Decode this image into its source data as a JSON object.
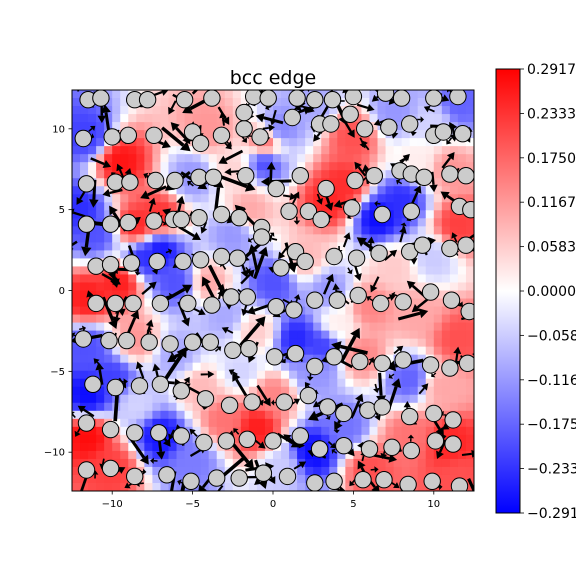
{
  "chart_data": {
    "type": "heatmap",
    "title": "bcc edge",
    "xlabel": "",
    "ylabel": "",
    "xlim": [
      -12.5,
      12.5
    ],
    "ylim": [
      -12.4,
      12.4
    ],
    "x_ticks": [
      {
        "value": -10,
        "label": "−10"
      },
      {
        "value": -5,
        "label": "−5"
      },
      {
        "value": 0,
        "label": "0"
      },
      {
        "value": 5,
        "label": "5"
      },
      {
        "value": 10,
        "label": "10"
      }
    ],
    "y_ticks": [
      {
        "value": 10,
        "label": "10"
      },
      {
        "value": 5,
        "label": "5"
      },
      {
        "value": 0,
        "label": "0"
      },
      {
        "value": -5,
        "label": "−5"
      },
      {
        "value": -10,
        "label": "−10"
      }
    ],
    "colormap": "bwr",
    "colors": {
      "low": "#0000ff",
      "mid": "#ffffff",
      "high": "#ff0000",
      "atom_fill": "#cccccc",
      "atom_edge": "#000000",
      "arrow": "#000000"
    },
    "colorbar": {
      "vmin": -0.2917,
      "vmax": 0.2917,
      "ticks": [
        {
          "value": 0.2917,
          "label": "0.2917"
        },
        {
          "value": 0.2333,
          "label": "0.2333"
        },
        {
          "value": 0.175,
          "label": "0.1750"
        },
        {
          "value": 0.1167,
          "label": "0.1167"
        },
        {
          "value": 0.0583,
          "label": "0.0583"
        },
        {
          "value": 0.0,
          "label": "0.0000"
        },
        {
          "value": -0.0583,
          "label": "−0.0583"
        },
        {
          "value": -0.1167,
          "label": "−0.1167"
        },
        {
          "value": -0.175,
          "label": "−0.1750"
        },
        {
          "value": -0.2333,
          "label": "−0.2333"
        },
        {
          "value": -0.2917,
          "label": "−0.2917"
        }
      ]
    },
    "field_samples": [
      {
        "x": -11.5,
        "y": 9.5,
        "v": -0.22
      },
      {
        "x": -11.0,
        "y": 3.5,
        "v": -0.2
      },
      {
        "x": -12.0,
        "y": 5.0,
        "v": -0.24
      },
      {
        "x": -11.5,
        "y": -0.5,
        "v": 0.26
      },
      {
        "x": -9.5,
        "y": 8.0,
        "v": 0.27
      },
      {
        "x": -8.5,
        "y": 4.0,
        "v": 0.25
      },
      {
        "x": -9.5,
        "y": 0.5,
        "v": 0.26
      },
      {
        "x": -7.0,
        "y": 4.5,
        "v": 0.24
      },
      {
        "x": -7.0,
        "y": 2.5,
        "v": -0.27
      },
      {
        "x": -6.0,
        "y": 0.5,
        "v": -0.2
      },
      {
        "x": -8.0,
        "y": 2.0,
        "v": -0.24
      },
      {
        "x": -5.0,
        "y": 7.0,
        "v": -0.12
      },
      {
        "x": -4.0,
        "y": 10.0,
        "v": 0.12
      },
      {
        "x": -2.5,
        "y": 7.5,
        "v": 0.05
      },
      {
        "x": -0.5,
        "y": 9.0,
        "v": 0.18
      },
      {
        "x": 0.5,
        "y": 10.0,
        "v": -0.14
      },
      {
        "x": -0.5,
        "y": 8.0,
        "v": -0.22
      },
      {
        "x": 2.5,
        "y": 11.5,
        "v": -0.1
      },
      {
        "x": 5.0,
        "y": 9.5,
        "v": 0.2
      },
      {
        "x": 7.5,
        "y": 11.0,
        "v": -0.12
      },
      {
        "x": 10.0,
        "y": 10.5,
        "v": -0.05
      },
      {
        "x": 11.5,
        "y": 11.5,
        "v": -0.18
      },
      {
        "x": 3.5,
        "y": 5.5,
        "v": 0.25
      },
      {
        "x": 4.5,
        "y": 6.5,
        "v": 0.24
      },
      {
        "x": 6.5,
        "y": 4.5,
        "v": -0.28
      },
      {
        "x": 8.0,
        "y": 5.5,
        "v": -0.24
      },
      {
        "x": 11.0,
        "y": 7.5,
        "v": 0.12
      },
      {
        "x": 11.5,
        "y": 4.0,
        "v": 0.22
      },
      {
        "x": 10.0,
        "y": 2.0,
        "v": -0.06
      },
      {
        "x": 2.0,
        "y": 2.0,
        "v": 0.08
      },
      {
        "x": -2.5,
        "y": 3.5,
        "v": -0.12
      },
      {
        "x": 0.0,
        "y": 0.5,
        "v": -0.2
      },
      {
        "x": 3.5,
        "y": 0.0,
        "v": -0.12
      },
      {
        "x": 6.0,
        "y": -1.0,
        "v": 0.14
      },
      {
        "x": 9.0,
        "y": -1.5,
        "v": 0.1
      },
      {
        "x": 11.5,
        "y": -3.0,
        "v": 0.2
      },
      {
        "x": -4.0,
        "y": 0.5,
        "v": 0.1
      },
      {
        "x": -3.0,
        "y": -1.5,
        "v": -0.1
      },
      {
        "x": -1.0,
        "y": -2.5,
        "v": 0.06
      },
      {
        "x": 1.5,
        "y": -3.0,
        "v": -0.25
      },
      {
        "x": 3.0,
        "y": -3.5,
        "v": -0.22
      },
      {
        "x": -11.5,
        "y": -3.5,
        "v": -0.2
      },
      {
        "x": -10.0,
        "y": -5.5,
        "v": -0.22
      },
      {
        "x": -11.5,
        "y": -6.5,
        "v": -0.28
      },
      {
        "x": -8.5,
        "y": -3.0,
        "v": 0.12
      },
      {
        "x": -6.0,
        "y": -4.0,
        "v": -0.1
      },
      {
        "x": -4.5,
        "y": -6.0,
        "v": 0.08
      },
      {
        "x": -2.0,
        "y": -5.0,
        "v": -0.05
      },
      {
        "x": 0.0,
        "y": -6.5,
        "v": 0.14
      },
      {
        "x": 2.5,
        "y": -5.0,
        "v": -0.12
      },
      {
        "x": 5.5,
        "y": -4.0,
        "v": 0.14
      },
      {
        "x": 8.5,
        "y": -5.5,
        "v": -0.18
      },
      {
        "x": 10.5,
        "y": -6.0,
        "v": 0.1
      },
      {
        "x": -11.5,
        "y": -9.0,
        "v": 0.28
      },
      {
        "x": -10.0,
        "y": -11.0,
        "v": 0.22
      },
      {
        "x": -7.0,
        "y": -9.0,
        "v": -0.27
      },
      {
        "x": -5.0,
        "y": -10.5,
        "v": -0.15
      },
      {
        "x": -3.0,
        "y": -8.0,
        "v": 0.16
      },
      {
        "x": -1.0,
        "y": -8.5,
        "v": 0.26
      },
      {
        "x": 0.5,
        "y": -11.0,
        "v": -0.06
      },
      {
        "x": 2.5,
        "y": -10.0,
        "v": -0.28
      },
      {
        "x": 4.5,
        "y": -8.5,
        "v": -0.16
      },
      {
        "x": 6.0,
        "y": -11.0,
        "v": 0.2
      },
      {
        "x": 8.5,
        "y": -9.0,
        "v": 0.16
      },
      {
        "x": 11.0,
        "y": -9.5,
        "v": 0.25
      },
      {
        "x": 11.5,
        "y": -11.5,
        "v": 0.2
      },
      {
        "x": -8.5,
        "y": -7.0,
        "v": -0.05
      },
      {
        "x": 4.0,
        "y": -2.0,
        "v": 0.02
      },
      {
        "x": 7.5,
        "y": 1.5,
        "v": 0.06
      },
      {
        "x": -1.5,
        "y": 5.0,
        "v": 0.1
      },
      {
        "x": 9.0,
        "y": 8.0,
        "v": 0.02
      }
    ],
    "atoms": [
      [
        -11.5,
        11.8
      ],
      [
        -10.7,
        11.9
      ],
      [
        -8.6,
        11.8
      ],
      [
        -7.8,
        11.8
      ],
      [
        -5.5,
        11.8
      ],
      [
        -3.8,
        11.9
      ],
      [
        -1.2,
        12.0
      ],
      [
        -0.3,
        11.9
      ],
      [
        1.5,
        11.9
      ],
      [
        2.6,
        11.8
      ],
      [
        3.7,
        11.8
      ],
      [
        5.0,
        12.0
      ],
      [
        7.0,
        12.2
      ],
      [
        8.0,
        11.9
      ],
      [
        10.0,
        11.9
      ],
      [
        11.5,
        12.0
      ],
      [
        -11.8,
        9.4
      ],
      [
        -10.0,
        9.5
      ],
      [
        -9.0,
        9.6
      ],
      [
        -7.4,
        9.6
      ],
      [
        -5.0,
        9.8
      ],
      [
        -4.5,
        9.1
      ],
      [
        -3.2,
        9.6
      ],
      [
        -1.8,
        10.0
      ],
      [
        -0.8,
        9.5
      ],
      [
        -1.8,
        11.0
      ],
      [
        1.2,
        10.7
      ],
      [
        2.9,
        10.3
      ],
      [
        3.6,
        10.3
      ],
      [
        4.8,
        10.9
      ],
      [
        5.7,
        10.0
      ],
      [
        7.2,
        10.1
      ],
      [
        8.5,
        10.3
      ],
      [
        10.0,
        9.6
      ],
      [
        10.6,
        9.8
      ],
      [
        11.8,
        9.7
      ],
      [
        -11.6,
        6.6
      ],
      [
        -9.8,
        6.7
      ],
      [
        -8.9,
        6.7
      ],
      [
        -7.3,
        6.8
      ],
      [
        -6.1,
        6.8
      ],
      [
        -4.6,
        7.0
      ],
      [
        -3.7,
        7.0
      ],
      [
        -1.7,
        7.1
      ],
      [
        0.2,
        6.3
      ],
      [
        1.7,
        7.1
      ],
      [
        3.3,
        6.3
      ],
      [
        5.1,
        6.8
      ],
      [
        6.3,
        7.1
      ],
      [
        7.9,
        7.4
      ],
      [
        8.6,
        7.2
      ],
      [
        9.4,
        7.0
      ],
      [
        11.0,
        7.2
      ],
      [
        12.0,
        7.1
      ],
      [
        -11.6,
        4.1
      ],
      [
        -10.1,
        4.1
      ],
      [
        -9.0,
        4.2
      ],
      [
        -7.4,
        4.3
      ],
      [
        -6.2,
        4.4
      ],
      [
        -5.7,
        4.4
      ],
      [
        -4.6,
        4.5
      ],
      [
        -3.2,
        4.7
      ],
      [
        -2.1,
        4.5
      ],
      [
        -0.7,
        3.9
      ],
      [
        1.0,
        4.9
      ],
      [
        2.2,
        4.9
      ],
      [
        3.0,
        4.4
      ],
      [
        4.9,
        5.1
      ],
      [
        6.8,
        4.7
      ],
      [
        8.6,
        4.9
      ],
      [
        11.6,
        5.2
      ],
      [
        12.3,
        5.0
      ],
      [
        -11.0,
        1.5
      ],
      [
        -10.1,
        1.6
      ],
      [
        -8.8,
        1.7
      ],
      [
        -7.2,
        1.8
      ],
      [
        -5.6,
        1.8
      ],
      [
        -4.5,
        1.9
      ],
      [
        -3.2,
        2.1
      ],
      [
        -2.2,
        2.0
      ],
      [
        -0.7,
        3.3
      ],
      [
        0.5,
        1.4
      ],
      [
        1.4,
        2.4
      ],
      [
        2.0,
        1.8
      ],
      [
        3.8,
        2.1
      ],
      [
        5.2,
        2.0
      ],
      [
        6.6,
        2.3
      ],
      [
        8.5,
        2.4
      ],
      [
        9.3,
        2.8
      ],
      [
        11.0,
        2.6
      ],
      [
        12.0,
        2.8
      ],
      [
        -11.0,
        -0.8
      ],
      [
        -9.8,
        -0.8
      ],
      [
        -8.7,
        -0.8
      ],
      [
        -7.0,
        -0.8
      ],
      [
        -5.3,
        -0.8
      ],
      [
        -3.8,
        -0.9
      ],
      [
        -2.6,
        -0.4
      ],
      [
        -1.6,
        -0.4
      ],
      [
        0.2,
        -1.0
      ],
      [
        1.3,
        -1.2
      ],
      [
        2.6,
        -0.6
      ],
      [
        4.0,
        -0.6
      ],
      [
        5.3,
        -0.3
      ],
      [
        6.7,
        -0.8
      ],
      [
        8.1,
        -0.7
      ],
      [
        9.8,
        -0.1
      ],
      [
        11.1,
        -0.6
      ],
      [
        12.2,
        -1.3
      ],
      [
        -11.8,
        -3.0
      ],
      [
        -10.2,
        -3.1
      ],
      [
        -9.1,
        -3.1
      ],
      [
        -7.7,
        -3.2
      ],
      [
        -6.4,
        -3.3
      ],
      [
        -5.0,
        -3.2
      ],
      [
        -3.9,
        -3.2
      ],
      [
        -2.5,
        -3.7
      ],
      [
        -1.5,
        -3.6
      ],
      [
        0.1,
        -4.1
      ],
      [
        1.4,
        -3.9
      ],
      [
        2.6,
        -4.7
      ],
      [
        3.8,
        -4.1
      ],
      [
        5.4,
        -4.4
      ],
      [
        6.8,
        -4.5
      ],
      [
        8.1,
        -4.3
      ],
      [
        9.8,
        -4.6
      ],
      [
        11.0,
        -4.8
      ],
      [
        12.1,
        -4.5
      ],
      [
        -11.2,
        -5.8
      ],
      [
        -9.8,
        -6.0
      ],
      [
        -8.3,
        -5.9
      ],
      [
        -7.0,
        -5.8
      ],
      [
        -5.7,
        -6.2
      ],
      [
        -4.2,
        -6.7
      ],
      [
        -2.7,
        -7.1
      ],
      [
        -1.3,
        -6.9
      ],
      [
        0.7,
        -6.9
      ],
      [
        2.2,
        -6.5
      ],
      [
        3.4,
        -7.2
      ],
      [
        4.4,
        -7.6
      ],
      [
        5.9,
        -7.4
      ],
      [
        6.8,
        -7.2
      ],
      [
        8.5,
        -7.8
      ],
      [
        10.0,
        -7.6
      ],
      [
        11.2,
        -8.0
      ],
      [
        -11.6,
        -8.2
      ],
      [
        -10.1,
        -8.6
      ],
      [
        -8.6,
        -8.8
      ],
      [
        -7.1,
        -8.8
      ],
      [
        -5.7,
        -9.0
      ],
      [
        -4.3,
        -9.4
      ],
      [
        -2.9,
        -9.3
      ],
      [
        -1.6,
        -9.2
      ],
      [
        0.0,
        -9.3
      ],
      [
        1.7,
        -9.0
      ],
      [
        2.9,
        -9.8
      ],
      [
        4.4,
        -9.6
      ],
      [
        6.0,
        -9.8
      ],
      [
        7.4,
        -9.7
      ],
      [
        8.6,
        -9.9
      ],
      [
        10.1,
        -9.3
      ],
      [
        11.2,
        -9.5
      ],
      [
        -11.6,
        -11.1
      ],
      [
        -10.1,
        -11.0
      ],
      [
        -8.6,
        -11.5
      ],
      [
        -6.6,
        -11.4
      ],
      [
        -5.1,
        -11.8
      ],
      [
        -3.5,
        -11.6
      ],
      [
        -2.1,
        -11.6
      ],
      [
        -0.6,
        -11.3
      ],
      [
        0.9,
        -11.5
      ],
      [
        2.6,
        -11.9
      ],
      [
        3.8,
        -11.8
      ],
      [
        5.6,
        -11.7
      ],
      [
        6.9,
        -11.7
      ],
      [
        8.4,
        -12.0
      ],
      [
        9.9,
        -11.8
      ],
      [
        11.6,
        -12.1
      ]
    ],
    "arrows": {
      "seed": 7,
      "count": 420,
      "max_length_units": 2.4
    }
  }
}
